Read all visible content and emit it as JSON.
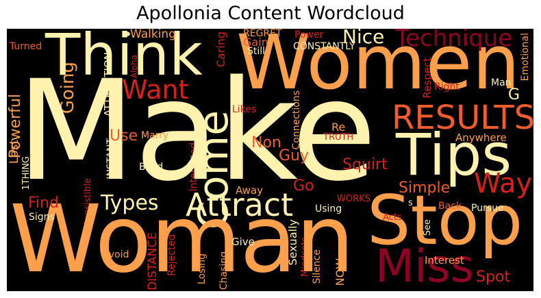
{
  "title": "Apollonia Content Wordcloud",
  "palette": {
    "background": "#000000",
    "cream": "#FFF2AE",
    "orange": "#FD9F4B",
    "red_orange": "#F25C2A",
    "red": "#D6201D",
    "dark_red": "#8E0024"
  },
  "words": {
    "make": "Make",
    "women": "Women",
    "woman": "Woman",
    "think": "Think",
    "stop": "Stop",
    "tips": "Tips",
    "miss": "Miss",
    "attract": "Attract",
    "results": "RESULTS",
    "come": "Come",
    "want": "Want",
    "technique": "Technique",
    "way": "Way",
    "types": "Types",
    "nice": "Nice",
    "squirt": "Squirt",
    "simple": "Simple",
    "going": "Going",
    "powerful": "Powerful",
    "guy": "Guy",
    "non": "Non",
    "use": "Use",
    "find": "Find",
    "spot": "Spot",
    "go": "Go",
    "lost": "Lost",
    "walking": "Walking",
    "caring": "Caring",
    "regret": "REGRET",
    "power": "Power",
    "gain": "Gain",
    "still": "Still",
    "constantly": "CONSTANTLY",
    "emotional": "Emotional",
    "turned": "Turned",
    "alpha": "Alpha",
    "attraction": "ATTRACTION",
    "respect": "Respect",
    "man": "Man",
    "right": "Right",
    "g": "G",
    "connections": "Connections",
    "likes": "Likes",
    "re": "Re",
    "truth": "TRUTH",
    "marry": "Marry",
    "anywhere": "Anywhere",
    "interested": "Interested",
    "build": "Build",
    "instant": "INSTANT",
    "one_thing": "1THING",
    "irresistible": "Irresistible",
    "away": "Away",
    "works": "WORKS",
    "using": "Using",
    "back": "Back",
    "pursue": "Pursue",
    "signs": "Signs",
    "acts": "Acts",
    "s": "s",
    "see": "See",
    "sexually": "Sexually",
    "distance": "DISTANCE",
    "give": "Give",
    "rejected": "Rejected",
    "losing": "Losing",
    "chasing": "Chasing",
    "avoid": "Avoid",
    "now": "NOW",
    "silence": "Silence",
    "mindsets": "Mindsets",
    "interest": "Interest",
    "dot": "•"
  }
}
